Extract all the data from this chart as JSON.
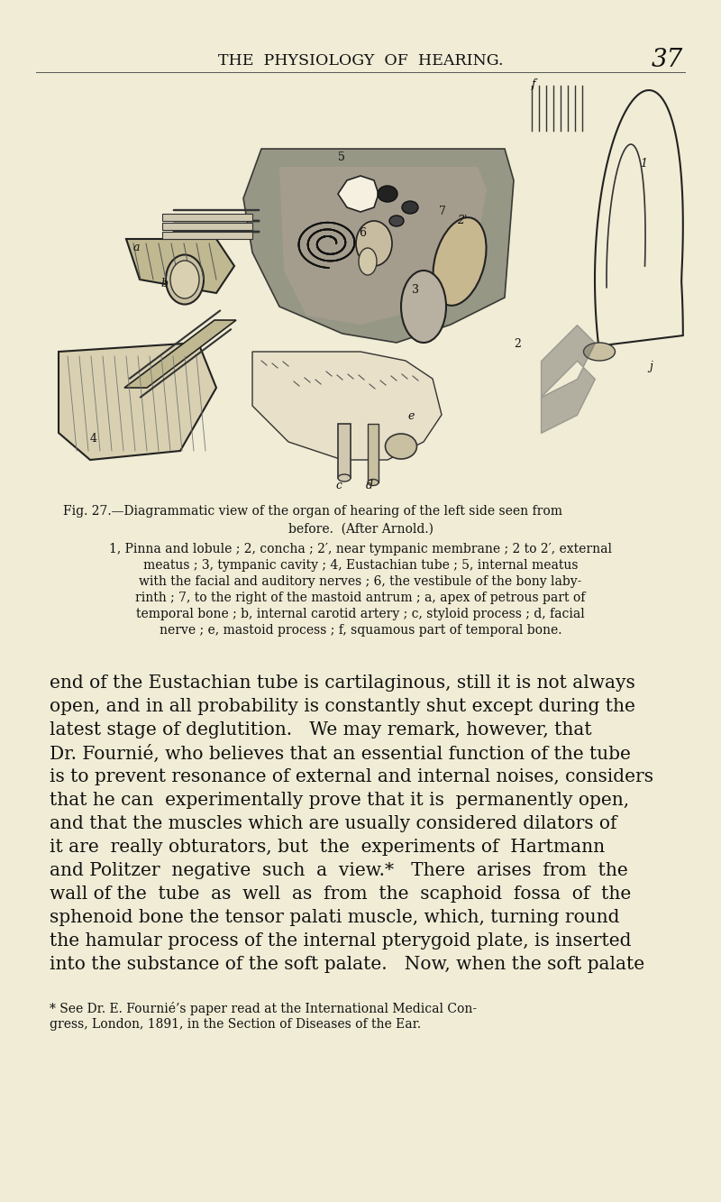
{
  "bg_color": "#f0ecd5",
  "header_text": "THE  PHYSIOLOGY  OF  HEARING.",
  "page_number": "37",
  "fig_caption_line1": "Fig. 27.—Diagrammatic view of the organ of hearing of the left side seen from",
  "fig_caption_line2": "before.  (After Arnold.)",
  "fig_caption_body": [
    "1, Pinna and lobule ; 2, concha ; 2′, near tympanic membrane ; 2 to 2′, external",
    "meatus ; 3, tympanic cavity ; 4, Eustachian tube ; 5, internal meatus",
    "with the facial and auditory nerves ; 6, the vestibule of the bony laby-",
    "rinth ; 7, to the right of the mastoid antrum ; a, apex of petrous part of",
    "temporal bone ; b, internal carotid artery ; c, styloid process ; d, facial",
    "nerve ; e, mastoid process ; f, squamous part of temporal bone."
  ],
  "body_text": [
    "end of the Eustachian tube is cartilaginous, still it is not always",
    "open, and in all probability is constantly shut except during the",
    "latest stage of deglutition.   We may remark, however, that",
    "Dr. Fournié, who believes that an essential function of the tube",
    "is to prevent resonance of external and internal noises, considers",
    "that he can  experimentally prove that it is  permanently open,",
    "and that the muscles which are usually considered dilators of",
    "it are  really obturators, but  the  experiments of  Hartmann",
    "and Politzer  negative  such  a  view.*   There  arises  from  the",
    "wall of the  tube  as  well  as  from  the  scaphoid  fossa  of  the",
    "sphenoid bone the tensor palati muscle, which, turning round",
    "the hamular process of the internal pterygoid plate, is inserted",
    "into the substance of the soft palate.   Now, when the soft palate"
  ],
  "footnote": [
    "* See Dr. E. Fournié’s paper read at the International Medical Con-",
    "gress, London, 1891, in the Section of Diseases of the Ear."
  ]
}
